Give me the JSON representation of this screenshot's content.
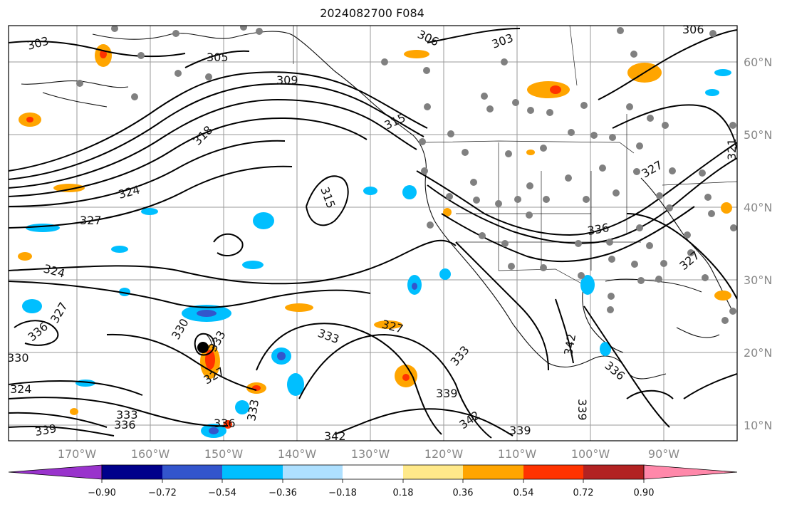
{
  "title": "2024082700 F084",
  "map": {
    "lon_ticks": [
      "170°W",
      "160°W",
      "150°W",
      "140°W",
      "130°W",
      "120°W",
      "110°W",
      "100°W",
      "90°W"
    ],
    "lat_ticks": [
      "60°N",
      "50°N",
      "40°N",
      "30°N",
      "20°N",
      "10°N"
    ],
    "contour_labels": [
      "303",
      "306",
      "303",
      "305",
      "306",
      "309",
      "315",
      "318",
      "324",
      "327",
      "324",
      "327",
      "330",
      "333",
      "333",
      "336",
      "327",
      "315",
      "336",
      "327",
      "333",
      "333",
      "336",
      "339",
      "342",
      "342",
      "339",
      "339",
      "336",
      "324",
      "330",
      "336",
      "333",
      "321",
      "327",
      "327",
      "342",
      "339"
    ],
    "fill_colors": {
      "pos_low": "#ffe98a",
      "pos_mid": "#ffa500",
      "pos_high": "#ff3300",
      "neg_low": "#aee0ff",
      "neg_mid": "#00bfff",
      "neg_high": "#3355cc"
    },
    "station_color": "#808080"
  },
  "colorbar": {
    "ticks": [
      "−0.90",
      "−0.72",
      "−0.54",
      "−0.36",
      "−0.18",
      "0.18",
      "0.36",
      "0.54",
      "0.72",
      "0.90"
    ],
    "colors": [
      "#9933cc",
      "#00008b",
      "#3355cc",
      "#00bfff",
      "#aee0ff",
      "#ffffff",
      "#ffe98a",
      "#ffa500",
      "#ff3300",
      "#b22222",
      "#ff88aa"
    ]
  }
}
